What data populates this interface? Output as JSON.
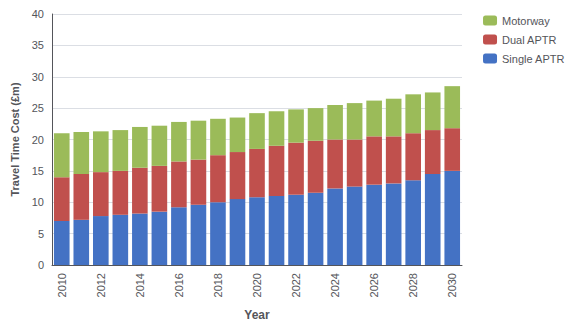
{
  "chart_data": {
    "type": "bar",
    "xlabel": "Year",
    "ylabel": "Travel Time Cost (£m)",
    "categories": [
      "2010",
      null,
      "2012",
      null,
      "2014",
      null,
      "2016",
      null,
      "2018",
      null,
      "2020",
      null,
      "2022",
      null,
      "2024",
      null,
      "2026",
      null,
      "2028",
      null,
      "2030"
    ],
    "series": [
      {
        "name": "Single APTR",
        "color": "#4472c4",
        "values": [
          7.0,
          7.2,
          7.8,
          8.0,
          8.2,
          8.5,
          9.2,
          9.6,
          10.0,
          10.5,
          10.8,
          11.0,
          11.2,
          11.5,
          12.2,
          12.5,
          12.8,
          13.0,
          13.5,
          14.5,
          15.0
        ]
      },
      {
        "name": "Dual APTR",
        "color": "#c0504d",
        "values": [
          7.0,
          7.3,
          7.0,
          7.0,
          7.3,
          7.3,
          7.3,
          7.2,
          7.5,
          7.5,
          7.7,
          8.0,
          8.3,
          8.3,
          7.8,
          7.5,
          7.7,
          7.5,
          7.5,
          7.0,
          6.8
        ]
      },
      {
        "name": "Motorway",
        "color": "#9bbb59",
        "values": [
          7.0,
          6.7,
          6.5,
          6.5,
          6.5,
          6.4,
          6.3,
          6.2,
          5.8,
          5.5,
          5.7,
          5.5,
          5.3,
          5.2,
          5.5,
          5.8,
          5.7,
          6.0,
          6.2,
          6.0,
          6.7
        ]
      }
    ],
    "stacked": true,
    "ylim": [
      0,
      40
    ],
    "yticks": [
      0,
      5,
      10,
      15,
      20,
      25,
      30,
      35,
      40
    ],
    "grid": true,
    "legend": "upper right"
  }
}
